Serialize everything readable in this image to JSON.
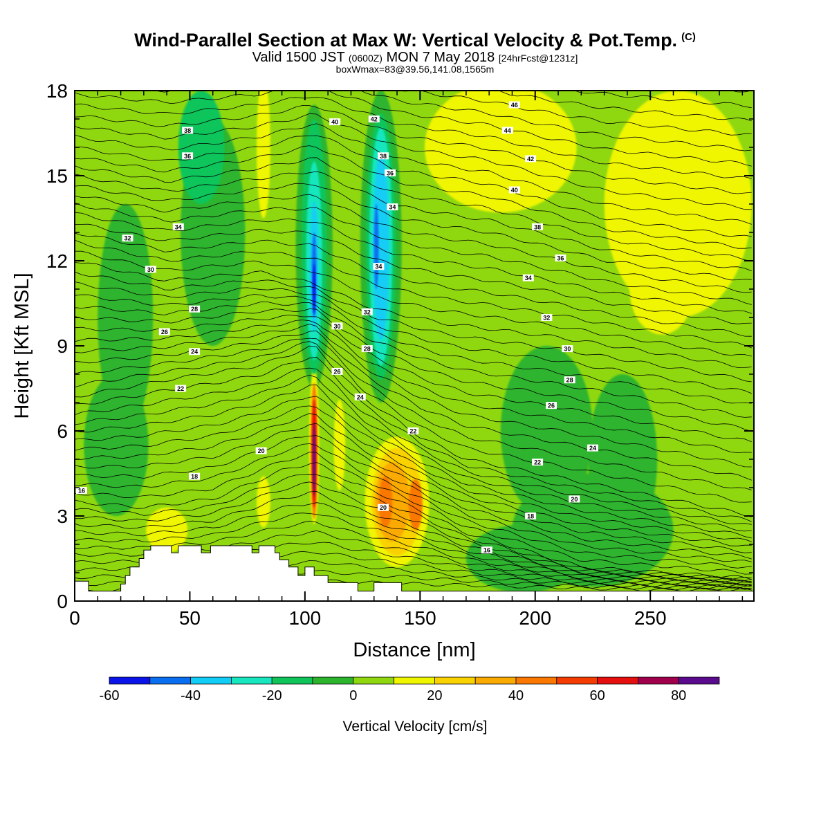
{
  "header": {
    "title": "Wind-Parallel Section at Max W: Vertical Velocity & Pot.Temp.",
    "title_mark": "(C)",
    "valid_pre": "Valid 1500 JST",
    "valid_utc": "(0600Z)",
    "valid_date": "MON 7 May 2018",
    "forecast": "[24hrFcst@1231z]",
    "boxwmax": "boxWmax=83@39.56,141.08,1565m"
  },
  "chart_data": {
    "type": "heatmap",
    "xlabel": "Distance [nm]",
    "ylabel": "Height [Kft MSL]",
    "xlim": [
      0,
      295
    ],
    "ylim": [
      0,
      18
    ],
    "xticks": [
      0,
      50,
      100,
      150,
      200,
      250
    ],
    "yticks": [
      0,
      3,
      6,
      9,
      12,
      15,
      18
    ],
    "colorbar": {
      "label": "Vertical Velocity [cm/s]",
      "bounds": [
        -60,
        -50,
        -40,
        -30,
        -20,
        -10,
        0,
        10,
        20,
        30,
        40,
        50,
        60,
        70,
        80,
        90
      ],
      "tick_labels": [
        -60,
        -40,
        -20,
        0,
        20,
        40,
        60,
        80
      ],
      "colors": [
        "#0a14e8",
        "#0a6ef0",
        "#12cdf5",
        "#17e6be",
        "#0fc55a",
        "#2db42d",
        "#8fd80f",
        "#f0f500",
        "#fad200",
        "#faaa00",
        "#fa7800",
        "#f53c00",
        "#e60f0f",
        "#a0004b",
        "#5a0a8c"
      ]
    },
    "background_w": 5,
    "w_field": [
      {
        "x": 104,
        "y": 5.5,
        "rx": 2.2,
        "ry": 2.8,
        "w": 15
      },
      {
        "x": 104,
        "y": 5.3,
        "rx": 1.5,
        "ry": 2.4,
        "w": 45
      },
      {
        "x": 104,
        "y": 5.2,
        "rx": 1.0,
        "ry": 1.9,
        "w": 65
      },
      {
        "x": 104,
        "y": 5.0,
        "rx": 0.6,
        "ry": 1.3,
        "w": 83
      },
      {
        "x": 140,
        "y": 3.5,
        "rx": 14,
        "ry": 2.3,
        "w": 15
      },
      {
        "x": 140,
        "y": 3.5,
        "rx": 11,
        "ry": 1.9,
        "w": 25
      },
      {
        "x": 138,
        "y": 3.5,
        "rx": 7.5,
        "ry": 1.4,
        "w": 35
      },
      {
        "x": 135,
        "y": 3.5,
        "rx": 3,
        "ry": 0.9,
        "w": 45
      },
      {
        "x": 148,
        "y": 3.4,
        "rx": 3,
        "ry": 0.9,
        "w": 45
      },
      {
        "x": 40,
        "y": 2.5,
        "rx": 9,
        "ry": 0.8,
        "w": 15
      },
      {
        "x": 82,
        "y": 3.5,
        "rx": 3,
        "ry": 0.9,
        "w": 15
      },
      {
        "x": 115,
        "y": 5.5,
        "rx": 2.5,
        "ry": 1.6,
        "w": 15
      },
      {
        "x": 185,
        "y": 16,
        "rx": 33,
        "ry": 2.3,
        "w": 15
      },
      {
        "x": 262,
        "y": 14,
        "rx": 32,
        "ry": 4.0,
        "w": 15
      },
      {
        "x": 255,
        "y": 11,
        "rx": 14,
        "ry": 1.6,
        "w": 15
      },
      {
        "x": 82,
        "y": 16,
        "rx": 3,
        "ry": 2.5,
        "w": 15
      },
      {
        "x": 104,
        "y": 12.5,
        "rx": 8,
        "ry": 5,
        "w": -5
      },
      {
        "x": 133,
        "y": 12.5,
        "rx": 9,
        "ry": 5.5,
        "w": -5
      },
      {
        "x": 104,
        "y": 12.5,
        "rx": 5.5,
        "ry": 4.5,
        "w": -15
      },
      {
        "x": 104,
        "y": 12.0,
        "rx": 3.5,
        "ry": 3.5,
        "w": -25
      },
      {
        "x": 104,
        "y": 11.8,
        "rx": 1.8,
        "ry": 2.3,
        "w": -35
      },
      {
        "x": 104,
        "y": 11.5,
        "rx": 1.0,
        "ry": 1.5,
        "w": -45
      },
      {
        "x": 104,
        "y": 11.0,
        "rx": 0.6,
        "ry": 0.9,
        "w": -55
      },
      {
        "x": 133,
        "y": 12.5,
        "rx": 6.5,
        "ry": 4.7,
        "w": -15
      },
      {
        "x": 133,
        "y": 12.5,
        "rx": 5,
        "ry": 4.2,
        "w": -25
      },
      {
        "x": 133,
        "y": 12.5,
        "rx": 3.5,
        "ry": 3.3,
        "w": -35
      },
      {
        "x": 131,
        "y": 12.5,
        "rx": 1.0,
        "ry": 1.5,
        "w": -45
      },
      {
        "x": 55,
        "y": 16,
        "rx": 10,
        "ry": 2,
        "w": -15
      },
      {
        "x": 22,
        "y": 10,
        "rx": 12,
        "ry": 4,
        "w": -5
      },
      {
        "x": 60,
        "y": 13,
        "rx": 14,
        "ry": 4,
        "w": -5
      },
      {
        "x": 205,
        "y": 6,
        "rx": 20,
        "ry": 3,
        "w": -5
      },
      {
        "x": 238,
        "y": 5,
        "rx": 15,
        "ry": 3,
        "w": -5
      },
      {
        "x": 225,
        "y": 2.5,
        "rx": 35,
        "ry": 2,
        "w": -5
      },
      {
        "x": 195,
        "y": 1.5,
        "rx": 25,
        "ry": 1.2,
        "w": -5
      },
      {
        "x": 18,
        "y": 5.5,
        "rx": 14,
        "ry": 2.5,
        "w": -5
      }
    ],
    "theta_labels": [
      {
        "x": 3,
        "y": 3.9,
        "t": "16"
      },
      {
        "x": 52,
        "y": 4.4,
        "t": "18"
      },
      {
        "x": 81,
        "y": 5.3,
        "t": "20"
      },
      {
        "x": 46,
        "y": 7.5,
        "t": "22"
      },
      {
        "x": 52,
        "y": 8.8,
        "t": "24"
      },
      {
        "x": 39,
        "y": 9.5,
        "t": "26"
      },
      {
        "x": 52,
        "y": 10.3,
        "t": "28"
      },
      {
        "x": 33,
        "y": 11.7,
        "t": "30"
      },
      {
        "x": 23,
        "y": 12.8,
        "t": "32"
      },
      {
        "x": 45,
        "y": 13.2,
        "t": "34"
      },
      {
        "x": 49,
        "y": 15.7,
        "t": "36"
      },
      {
        "x": 49,
        "y": 16.6,
        "t": "38"
      },
      {
        "x": 113,
        "y": 16.9,
        "t": "40"
      },
      {
        "x": 130,
        "y": 17.0,
        "t": "42"
      },
      {
        "x": 134,
        "y": 15.7,
        "t": "38"
      },
      {
        "x": 137,
        "y": 15.1,
        "t": "36"
      },
      {
        "x": 138,
        "y": 13.9,
        "t": "34"
      },
      {
        "x": 132,
        "y": 11.8,
        "t": "34"
      },
      {
        "x": 127,
        "y": 10.2,
        "t": "32"
      },
      {
        "x": 114,
        "y": 9.7,
        "t": "30"
      },
      {
        "x": 127,
        "y": 8.9,
        "t": "28"
      },
      {
        "x": 114,
        "y": 8.1,
        "t": "26"
      },
      {
        "x": 124,
        "y": 7.2,
        "t": "24"
      },
      {
        "x": 147,
        "y": 6.0,
        "t": "22"
      },
      {
        "x": 134,
        "y": 3.3,
        "t": "20"
      },
      {
        "x": 191,
        "y": 17.5,
        "t": "46"
      },
      {
        "x": 188,
        "y": 16.6,
        "t": "44"
      },
      {
        "x": 198,
        "y": 15.6,
        "t": "42"
      },
      {
        "x": 191,
        "y": 14.5,
        "t": "40"
      },
      {
        "x": 201,
        "y": 13.2,
        "t": "38"
      },
      {
        "x": 211,
        "y": 12.1,
        "t": "36"
      },
      {
        "x": 197,
        "y": 11.4,
        "t": "34"
      },
      {
        "x": 205,
        "y": 10.0,
        "t": "32"
      },
      {
        "x": 214,
        "y": 8.9,
        "t": "30"
      },
      {
        "x": 215,
        "y": 7.8,
        "t": "28"
      },
      {
        "x": 207,
        "y": 6.9,
        "t": "26"
      },
      {
        "x": 225,
        "y": 5.4,
        "t": "24"
      },
      {
        "x": 201,
        "y": 4.9,
        "t": "22"
      },
      {
        "x": 217,
        "y": 3.6,
        "t": "20"
      },
      {
        "x": 198,
        "y": 3.0,
        "t": "18"
      },
      {
        "x": 179,
        "y": 1.8,
        "t": "16"
      }
    ],
    "terrain": [
      [
        0,
        0.7
      ],
      [
        6,
        0.7
      ],
      [
        6,
        0.35
      ],
      [
        20,
        0.35
      ],
      [
        20,
        0.6
      ],
      [
        22,
        0.6
      ],
      [
        22,
        0.9
      ],
      [
        24,
        0.9
      ],
      [
        24,
        1.2
      ],
      [
        28,
        1.2
      ],
      [
        28,
        1.5
      ],
      [
        30,
        1.5
      ],
      [
        30,
        1.8
      ],
      [
        33,
        1.8
      ],
      [
        33,
        1.95
      ],
      [
        42,
        1.95
      ],
      [
        42,
        1.7
      ],
      [
        45,
        1.7
      ],
      [
        45,
        1.95
      ],
      [
        55,
        1.95
      ],
      [
        55,
        1.7
      ],
      [
        59,
        1.7
      ],
      [
        59,
        1.95
      ],
      [
        77,
        1.95
      ],
      [
        77,
        1.7
      ],
      [
        80,
        1.7
      ],
      [
        80,
        1.95
      ],
      [
        87,
        1.95
      ],
      [
        87,
        1.7
      ],
      [
        89,
        1.7
      ],
      [
        89,
        1.45
      ],
      [
        93,
        1.45
      ],
      [
        93,
        1.2
      ],
      [
        97,
        1.2
      ],
      [
        97,
        0.9
      ],
      [
        100,
        0.9
      ],
      [
        100,
        1.2
      ],
      [
        104,
        1.2
      ],
      [
        104,
        0.9
      ],
      [
        110,
        0.9
      ],
      [
        110,
        0.65
      ],
      [
        123,
        0.65
      ],
      [
        123,
        0.35
      ],
      [
        130,
        0.35
      ],
      [
        130,
        0.65
      ],
      [
        142,
        0.65
      ],
      [
        142,
        0.35
      ],
      [
        295,
        0.35
      ],
      [
        295,
        0
      ],
      [
        0,
        0
      ]
    ]
  }
}
